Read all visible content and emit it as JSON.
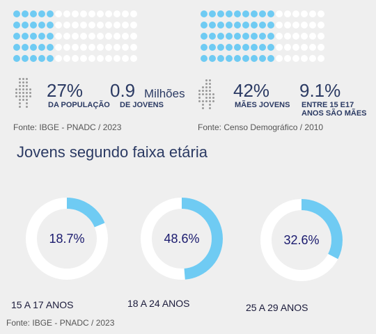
{
  "waffles": [
    {
      "filled_cols": 5,
      "rows": 5,
      "cols": 15
    },
    {
      "filled_cols": 9,
      "rows": 5,
      "cols": 15
    }
  ],
  "stats_left": {
    "pct": "27%",
    "pct_caption": "DA POPULAÇÃO",
    "value": "0.9",
    "unit": "Milhões",
    "value_caption": "DE JOVENS",
    "source": "Fonte: IBGE - PNADC / 2023"
  },
  "stats_right": {
    "pct": "42%",
    "pct_caption": "MÃES JOVENS",
    "value": "9.1%",
    "value_caption_1": "ENTRE 15 E17",
    "value_caption_2": "ANOS SÃO MÃES",
    "source": "Fonte: Censo Demográfico / 2010"
  },
  "section_title": "Jovens segundo faixa etária",
  "chart_data": {
    "type": "donut",
    "categories": [
      "15 A 17 ANOS",
      "18 A 24 ANOS",
      "25 A 29 ANOS"
    ],
    "values": [
      18.7,
      48.6,
      32.6
    ],
    "labels": [
      "18.7%",
      "48.6%",
      "32.6%"
    ],
    "unit": "%",
    "colors": {
      "filled": "#6fcbf3",
      "track": "#ffffff"
    }
  },
  "footer_source": "Fonte: IBGE - PNADC / 2023"
}
